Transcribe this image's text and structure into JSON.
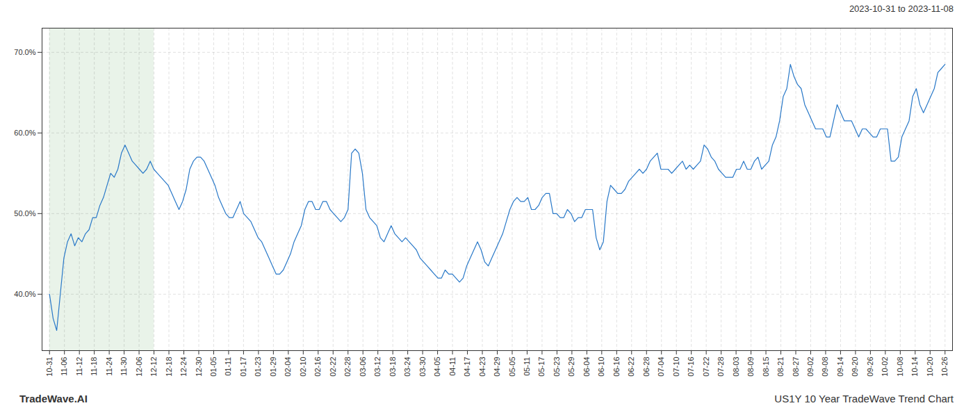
{
  "chart_data": {
    "type": "line",
    "title": "US1Y 10 Year TradeWave Trend Chart",
    "subtitle": "2023-10-31 to 2023-11-08",
    "annotations": [
      "TradeWave.AI"
    ],
    "color": "#2878c8",
    "grid": true,
    "xlim": [
      -0.5,
      60.5
    ],
    "xticks": [
      {
        "value": 0,
        "label": "10-31"
      },
      {
        "value": 1,
        "label": "11-06"
      },
      {
        "value": 2,
        "label": "11-12"
      },
      {
        "value": 3,
        "label": "11-18"
      },
      {
        "value": 4,
        "label": "11-24"
      },
      {
        "value": 5,
        "label": "11-30"
      },
      {
        "value": 6,
        "label": "12-06"
      },
      {
        "value": 7,
        "label": "12-12"
      },
      {
        "value": 8,
        "label": "12-18"
      },
      {
        "value": 9,
        "label": "12-24"
      },
      {
        "value": 10,
        "label": "12-30"
      },
      {
        "value": 11,
        "label": "01-05"
      },
      {
        "value": 12,
        "label": "01-11"
      },
      {
        "value": 13,
        "label": "01-17"
      },
      {
        "value": 14,
        "label": "01-23"
      },
      {
        "value": 15,
        "label": "01-29"
      },
      {
        "value": 16,
        "label": "02-04"
      },
      {
        "value": 17,
        "label": "02-10"
      },
      {
        "value": 18,
        "label": "02-16"
      },
      {
        "value": 19,
        "label": "02-22"
      },
      {
        "value": 20,
        "label": "02-28"
      },
      {
        "value": 21,
        "label": "03-06"
      },
      {
        "value": 22,
        "label": "03-12"
      },
      {
        "value": 23,
        "label": "03-18"
      },
      {
        "value": 24,
        "label": "03-24"
      },
      {
        "value": 25,
        "label": "03-30"
      },
      {
        "value": 26,
        "label": "04-05"
      },
      {
        "value": 27,
        "label": "04-11"
      },
      {
        "value": 28,
        "label": "04-17"
      },
      {
        "value": 29,
        "label": "04-23"
      },
      {
        "value": 30,
        "label": "04-29"
      },
      {
        "value": 31,
        "label": "05-05"
      },
      {
        "value": 32,
        "label": "05-11"
      },
      {
        "value": 33,
        "label": "05-17"
      },
      {
        "value": 34,
        "label": "05-23"
      },
      {
        "value": 35,
        "label": "05-29"
      },
      {
        "value": 36,
        "label": "06-04"
      },
      {
        "value": 37,
        "label": "06-10"
      },
      {
        "value": 38,
        "label": "06-16"
      },
      {
        "value": 39,
        "label": "06-22"
      },
      {
        "value": 40,
        "label": "06-28"
      },
      {
        "value": 41,
        "label": "07-04"
      },
      {
        "value": 42,
        "label": "07-10"
      },
      {
        "value": 43,
        "label": "07-16"
      },
      {
        "value": 44,
        "label": "07-22"
      },
      {
        "value": 45,
        "label": "07-28"
      },
      {
        "value": 46,
        "label": "08-03"
      },
      {
        "value": 47,
        "label": "08-09"
      },
      {
        "value": 48,
        "label": "08-15"
      },
      {
        "value": 49,
        "label": "08-21"
      },
      {
        "value": 50,
        "label": "08-27"
      },
      {
        "value": 51,
        "label": "09-02"
      },
      {
        "value": 52,
        "label": "09-08"
      },
      {
        "value": 53,
        "label": "09-14"
      },
      {
        "value": 54,
        "label": "09-20"
      },
      {
        "value": 55,
        "label": "09-26"
      },
      {
        "value": 56,
        "label": "10-02"
      },
      {
        "value": 57,
        "label": "10-08"
      },
      {
        "value": 58,
        "label": "10-14"
      },
      {
        "value": 59,
        "label": "10-20"
      },
      {
        "value": 60,
        "label": "10-26"
      }
    ],
    "ylim": [
      33,
      73
    ],
    "yticks": [
      {
        "value": 40.0,
        "label": "40.0%"
      },
      {
        "value": 50.0,
        "label": "50.0%"
      },
      {
        "value": 60.0,
        "label": "60.0%"
      },
      {
        "value": 70.0,
        "label": "70.0%"
      }
    ],
    "highlight": {
      "x": [
        0,
        7
      ],
      "color": "#d4e8d4"
    },
    "x": [
      0,
      0.241,
      0.4819,
      0.7229,
      0.9639,
      1.2048,
      1.4458,
      1.6867,
      1.9277,
      2.1687,
      2.4096,
      2.6506,
      2.8916,
      3.1325,
      3.3735,
      3.6145,
      3.8554,
      4.0964,
      4.3373,
      4.5783,
      4.8193,
      5.0602,
      5.3012,
      5.5422,
      5.7831,
      6.0241,
      6.2651,
      6.506,
      6.747,
      6.988,
      7.2289,
      7.4699,
      7.7108,
      7.9518,
      8.1928,
      8.4337,
      8.6747,
      8.9157,
      9.1566,
      9.3976,
      9.6386,
      9.8795,
      10.1205,
      10.3614,
      10.6024,
      10.8434,
      11.0843,
      11.3253,
      11.5663,
      11.8072,
      12.0482,
      12.2892,
      12.5301,
      12.7711,
      13.012,
      13.253,
      13.494,
      13.7349,
      13.9759,
      14.2169,
      14.4578,
      14.6988,
      14.9398,
      15.1807,
      15.4217,
      15.6627,
      15.9036,
      16.1446,
      16.3855,
      16.6265,
      16.8675,
      17.1084,
      17.3494,
      17.5904,
      17.8313,
      18.0723,
      18.3133,
      18.5542,
      18.7952,
      19.0361,
      19.2771,
      19.5181,
      19.759,
      20,
      20.241,
      20.4819,
      20.7229,
      20.9639,
      21.2048,
      21.4458,
      21.6867,
      21.9277,
      22.1687,
      22.4096,
      22.6506,
      22.8916,
      23.1325,
      23.3735,
      23.6145,
      23.8554,
      24.0964,
      24.3373,
      24.5783,
      24.8193,
      25.0602,
      25.3012,
      25.5422,
      25.7831,
      26.0241,
      26.2651,
      26.506,
      26.747,
      26.988,
      27.2289,
      27.4699,
      27.7108,
      27.9518,
      28.1928,
      28.4337,
      28.6747,
      28.9157,
      29.1566,
      29.3976,
      29.6386,
      29.8795,
      30.1205,
      30.3614,
      30.6024,
      30.8434,
      31.0843,
      31.3253,
      31.5663,
      31.8072,
      32.0482,
      32.2892,
      32.5301,
      32.7711,
      33.012,
      33.253,
      33.494,
      33.7349,
      33.9759,
      34.2169,
      34.4578,
      34.6988,
      34.9398,
      35.1807,
      35.4217,
      35.6627,
      35.9036,
      36.1446,
      36.3855,
      36.6265,
      36.8675,
      37.1084,
      37.3494,
      37.5904,
      37.8313,
      38.0723,
      38.3133,
      38.5542,
      38.7952,
      39.0361,
      39.2771,
      39.5181,
      39.759,
      40,
      40.241,
      40.4819,
      40.7229,
      40.9639,
      41.2048,
      41.4458,
      41.6867,
      41.9277,
      42.1687,
      42.4096,
      42.6506,
      42.8916,
      43.1325,
      43.3735,
      43.6145,
      43.8554,
      44.0964,
      44.3373,
      44.5783,
      44.8193,
      45.0602,
      45.3012,
      45.5422,
      45.7831,
      46.0241,
      46.2651,
      46.506,
      46.747,
      46.988,
      47.2289,
      47.4699,
      47.7108,
      47.9518,
      48.1928,
      48.4337,
      48.6747,
      48.9157,
      49.1566,
      49.3976,
      49.6386,
      49.8795,
      50.1205,
      50.3614,
      50.6024,
      50.8434,
      51.0843,
      51.3253,
      51.5663,
      51.8072,
      52.0482,
      52.2892,
      52.5301,
      52.7711,
      53.012,
      53.253,
      53.494,
      53.7349,
      53.9759,
      54.2169,
      54.4578,
      54.6988,
      54.9398,
      55.1807,
      55.4217,
      55.6627,
      55.9036,
      56.1446,
      56.3855,
      56.6265,
      56.8675,
      57.1084,
      57.3494,
      57.5904,
      57.8313,
      58.0723,
      58.3133,
      58.5542,
      58.7952,
      59.0361,
      59.2771,
      59.5181,
      59.759,
      60
    ],
    "values": [
      40.0,
      37.0,
      35.5,
      40.0,
      44.5,
      46.5,
      47.5,
      46.0,
      47.0,
      46.5,
      47.5,
      48.0,
      49.5,
      49.5,
      51.0,
      52.0,
      53.5,
      55.0,
      54.5,
      55.5,
      57.5,
      58.5,
      57.5,
      56.5,
      56.0,
      55.5,
      55.0,
      55.5,
      56.5,
      55.5,
      55.0,
      54.5,
      54.0,
      53.5,
      52.5,
      51.5,
      50.5,
      51.5,
      53.0,
      55.5,
      56.5,
      57.0,
      57.0,
      56.5,
      55.5,
      54.5,
      53.5,
      52.0,
      51.0,
      50.0,
      49.5,
      49.5,
      50.5,
      51.5,
      50.0,
      49.5,
      49.0,
      48.0,
      47.0,
      46.5,
      45.5,
      44.5,
      43.5,
      42.5,
      42.5,
      43.0,
      44.0,
      45.0,
      46.5,
      47.5,
      48.5,
      50.5,
      51.5,
      51.5,
      50.5,
      50.5,
      51.5,
      51.5,
      50.5,
      50.0,
      49.5,
      49.0,
      49.5,
      50.5,
      57.5,
      58.0,
      57.5,
      55.0,
      50.5,
      49.5,
      49.0,
      48.5,
      47.0,
      46.5,
      47.5,
      48.5,
      47.5,
      47.0,
      46.5,
      47.0,
      46.5,
      46.0,
      45.5,
      44.5,
      44.0,
      43.5,
      43.0,
      42.5,
      42.0,
      42.0,
      43.0,
      42.5,
      42.5,
      42.0,
      41.5,
      42.0,
      43.5,
      44.5,
      45.5,
      46.5,
      45.5,
      44.0,
      43.5,
      44.5,
      45.5,
      46.5,
      47.5,
      49.0,
      50.5,
      51.5,
      52.0,
      51.5,
      51.5,
      52.0,
      50.5,
      50.5,
      51.0,
      52.0,
      52.5,
      52.5,
      50.0,
      50.0,
      49.5,
      49.5,
      50.5,
      50.0,
      49.0,
      49.5,
      49.5,
      50.5,
      50.5,
      50.5,
      47.0,
      45.5,
      46.5,
      51.5,
      53.5,
      53.0,
      52.5,
      52.5,
      53.0,
      54.0,
      54.5,
      55.0,
      55.5,
      55.0,
      55.5,
      56.5,
      57.0,
      57.5,
      55.5,
      55.5,
      55.5,
      55.0,
      55.5,
      56.0,
      56.5,
      55.5,
      56.0,
      55.5,
      56.0,
      56.5,
      58.5,
      58.0,
      57.0,
      56.5,
      55.5,
      55.0,
      54.5,
      54.5,
      54.5,
      55.5,
      55.5,
      56.5,
      55.5,
      55.5,
      56.5,
      57.0,
      55.5,
      56.0,
      56.5,
      58.5,
      59.5,
      61.5,
      64.5,
      65.5,
      68.5,
      67.0,
      66.0,
      65.5,
      63.5,
      62.5,
      61.5,
      60.5,
      60.5,
      60.5,
      59.5,
      59.5,
      61.5,
      63.5,
      62.5,
      61.5,
      61.5,
      61.5,
      60.5,
      59.5,
      60.5,
      60.5,
      60.0,
      59.5,
      59.5,
      60.5,
      60.5,
      60.5,
      56.5,
      56.5,
      57.0,
      59.5,
      60.5,
      61.5,
      64.5,
      65.5,
      63.5,
      62.5,
      63.5,
      64.5,
      65.5,
      67.5,
      68.0,
      68.5
    ]
  }
}
